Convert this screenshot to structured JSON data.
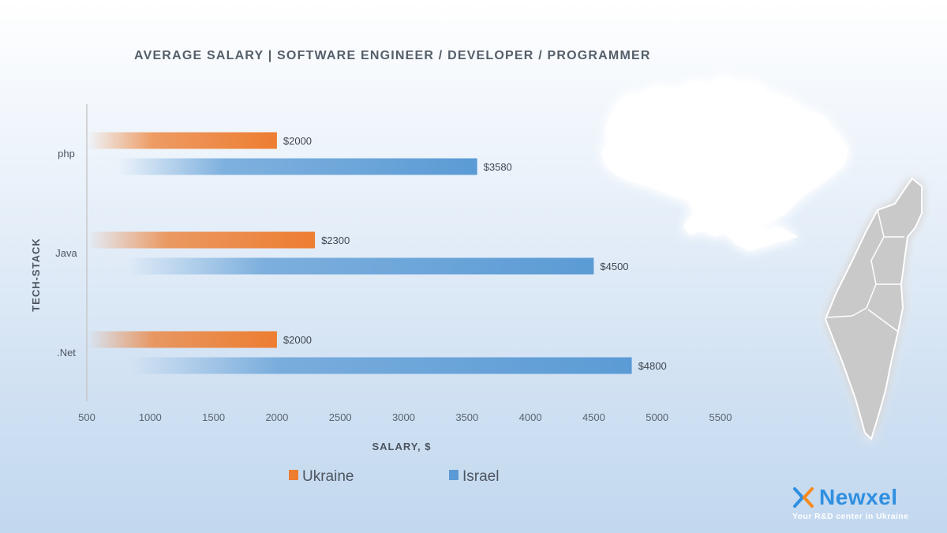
{
  "chart_data": {
    "type": "bar",
    "orientation": "horizontal",
    "title": "AVERAGE SALARY | SOFTWARE ENGINEER / DEVELOPER / PROGRAMMER",
    "xlabel": "SALARY, $",
    "ylabel": "TECH-STACK",
    "categories": [
      "php",
      "Java",
      ".Net"
    ],
    "series": [
      {
        "name": "Ukraine",
        "values": [
          2000,
          2300,
          2000
        ],
        "labels": [
          "$2000",
          "$2300",
          "$2000"
        ],
        "color": "#ed7d31"
      },
      {
        "name": "Israel",
        "values": [
          3580,
          4500,
          4800
        ],
        "labels": [
          "$3580",
          "$4500",
          "$4800"
        ],
        "color": "#5b9bd5"
      }
    ],
    "xlim": [
      500,
      5500
    ],
    "xticks": [
      500,
      1000,
      1500,
      2000,
      2500,
      3000,
      3500,
      4000,
      4500,
      5000,
      5500
    ],
    "grid": false,
    "legend_position": "bottom"
  },
  "brand": {
    "name": "Newxel",
    "tagline": "Your R&D center in Ukraine",
    "color": "#2f8fe0"
  }
}
